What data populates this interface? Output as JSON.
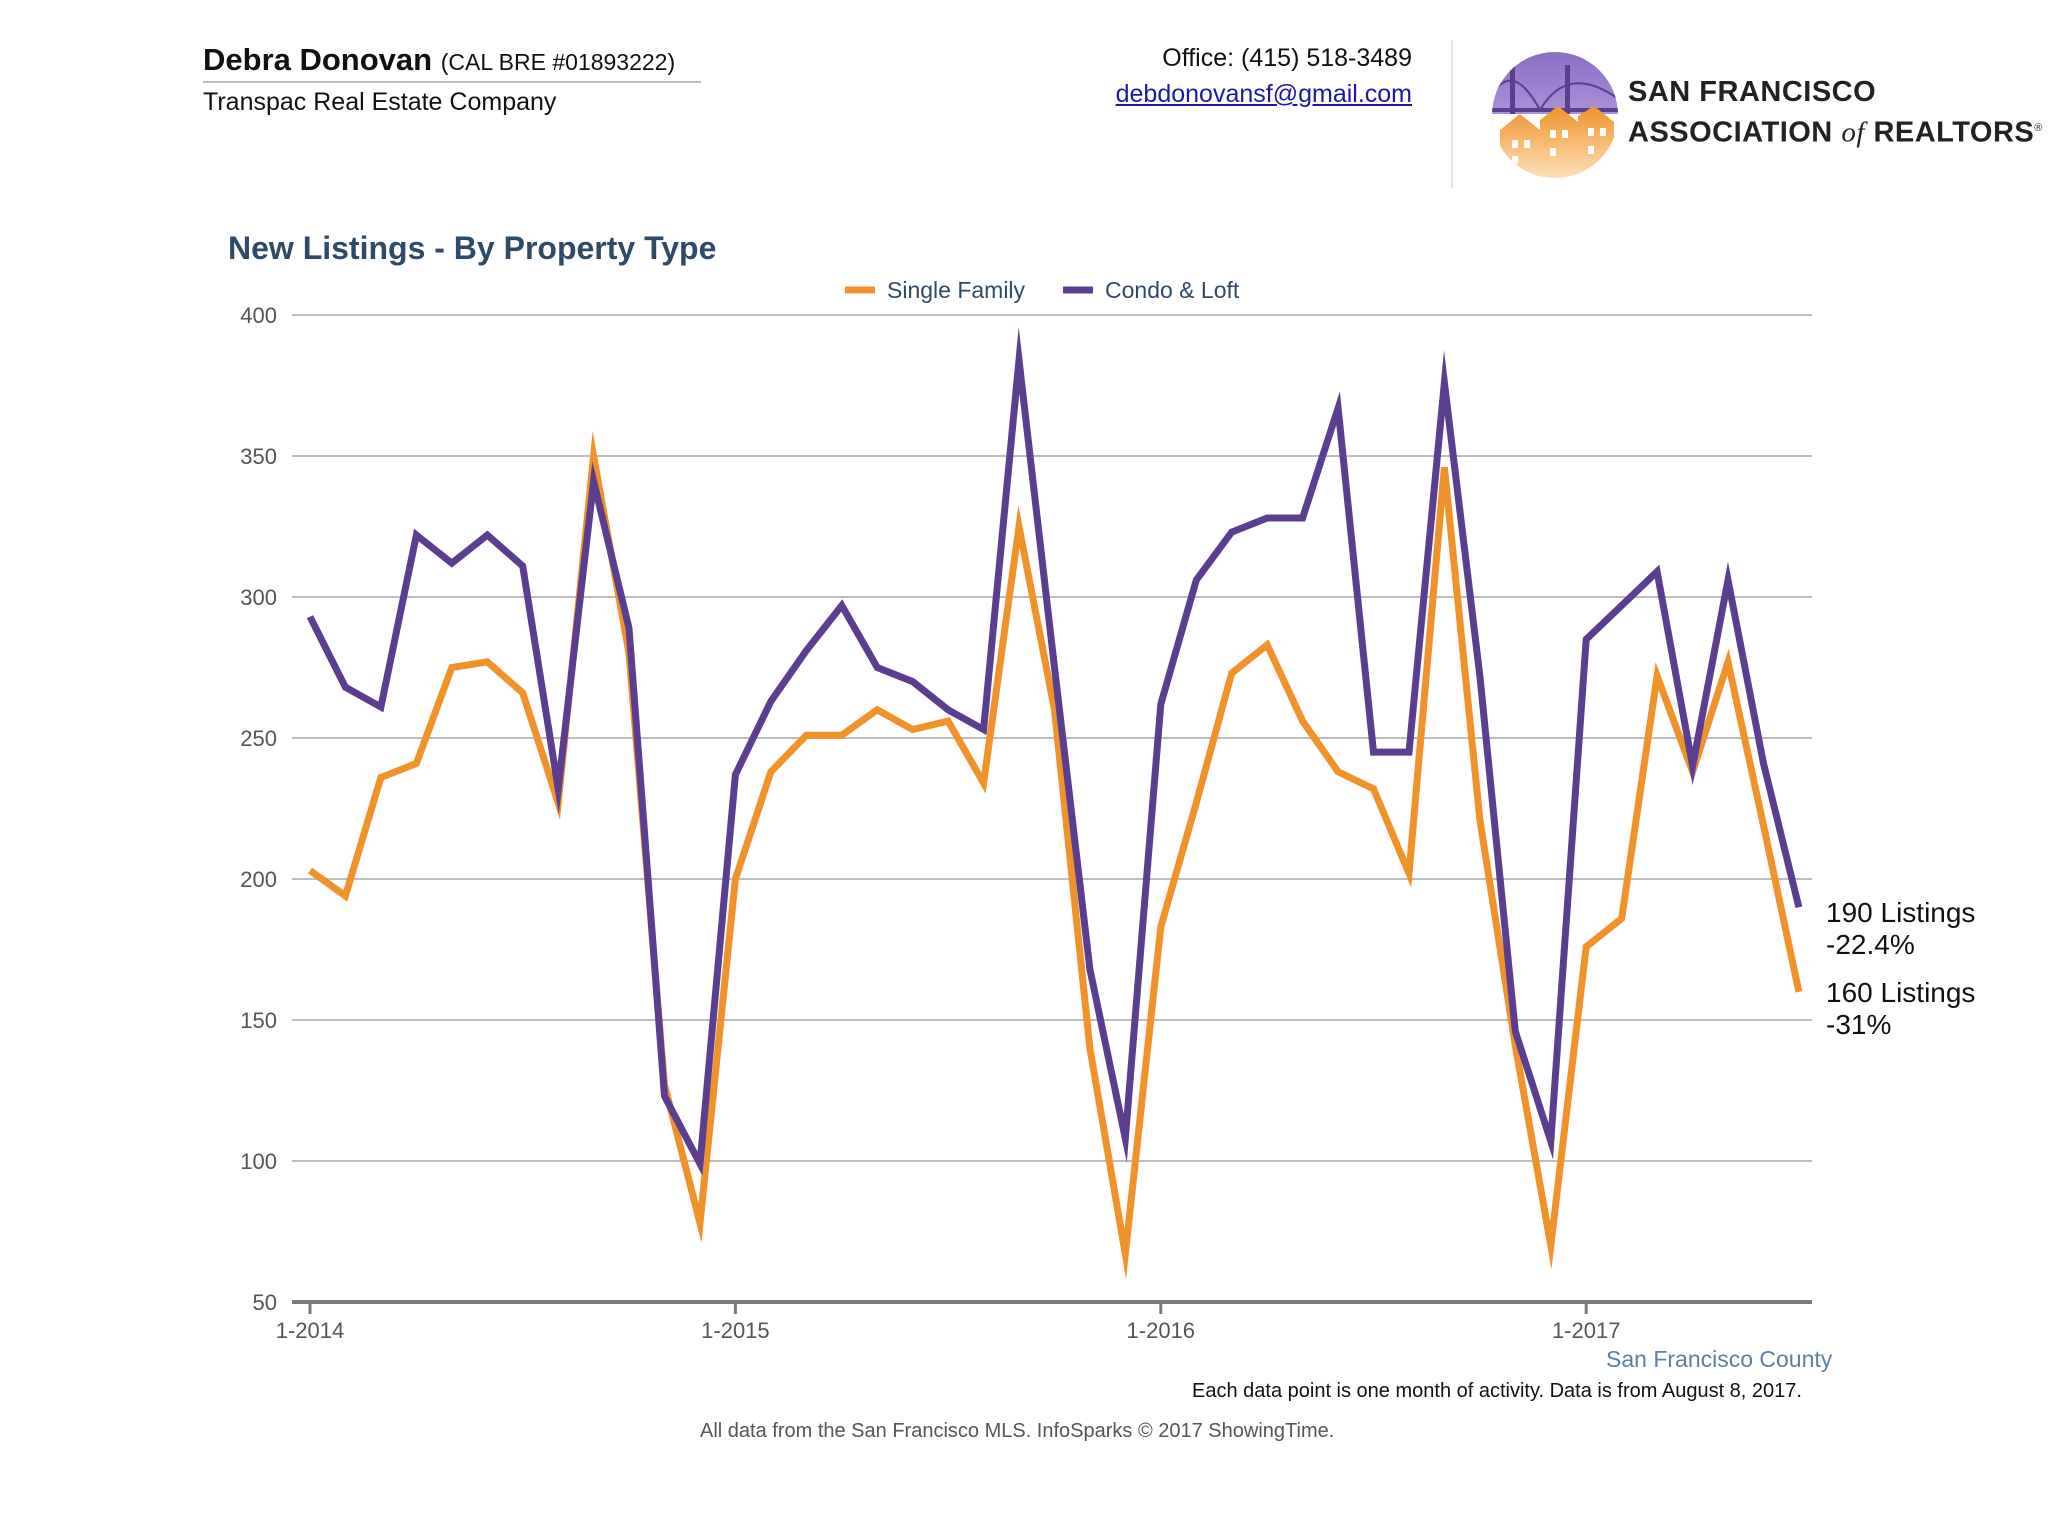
{
  "header": {
    "agent_name": "Debra Donovan",
    "agent_license": "(CAL BRE #01893222)",
    "company": "Transpac Real Estate Company",
    "office": "Office: (415) 518-3489",
    "email": "debdonovansf@gmail.com",
    "org_line1": "SAN FRANCISCO",
    "org_line2_a": "ASSOCIATION",
    "org_line2_of": "of",
    "org_line2_b": "REALTORS",
    "org_reg": "®"
  },
  "footer": {
    "county": "San Francisco County",
    "note": "Each data point is one month of activity. Data is from August 8, 2017.",
    "source": "All data from the San Francisco MLS. InfoSparks © 2017 ShowingTime."
  },
  "colors": {
    "single_family": "#f0922a",
    "condo_loft": "#5b3e8f",
    "grid": "#bdbdbd",
    "axis": "#7a7a7a",
    "title": "#2e4a66",
    "tick_text": "#555555",
    "end_label": "#111111"
  },
  "chart_data": {
    "type": "line",
    "title": "New Listings - By Property Type",
    "xlabel": "",
    "ylabel": "",
    "ylim": [
      50,
      400
    ],
    "yticks": [
      50,
      100,
      150,
      200,
      250,
      300,
      350,
      400
    ],
    "x_range_months": [
      "1-2014",
      "7-2017"
    ],
    "xticks": [
      "1-2014",
      "1-2015",
      "1-2016",
      "1-2017"
    ],
    "grid": true,
    "legend_position": "top-center",
    "series": [
      {
        "name": "Single Family",
        "values": [
          203,
          194,
          236,
          241,
          275,
          277,
          266,
          227,
          350,
          280,
          127,
          78,
          200,
          238,
          251,
          251,
          260,
          253,
          256,
          234,
          325,
          260,
          140,
          67,
          183,
          227,
          273,
          283,
          256,
          238,
          232,
          202,
          346,
          221,
          141,
          70,
          176,
          186,
          272,
          238,
          277,
          219,
          160
        ],
        "end_label_1": "160 Listings",
        "end_label_2": "-31%"
      },
      {
        "name": "Condo & Loft",
        "values": [
          293,
          268,
          261,
          322,
          312,
          322,
          311,
          232,
          341,
          289,
          123,
          99,
          237,
          263,
          281,
          297,
          275,
          270,
          260,
          253,
          384,
          275,
          168,
          108,
          262,
          306,
          323,
          328,
          328,
          367,
          245,
          245,
          376,
          272,
          146,
          107,
          285,
          297,
          309,
          240,
          306,
          241,
          190
        ],
        "end_label_1": "190 Listings",
        "end_label_2": "-22.4%"
      }
    ]
  }
}
